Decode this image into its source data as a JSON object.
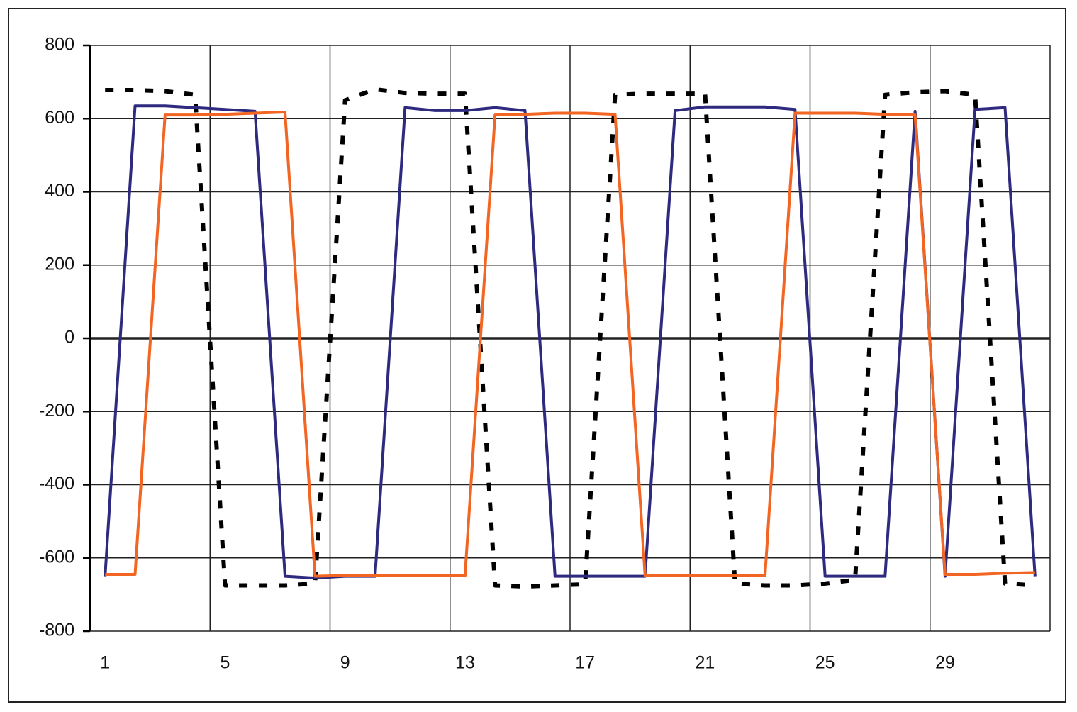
{
  "chart_data": {
    "type": "line",
    "categories": [
      "1",
      null,
      null,
      null,
      "5",
      null,
      null,
      null,
      "9",
      null,
      null,
      null,
      "13",
      null,
      null,
      null,
      "17",
      null,
      null,
      null,
      "21",
      null,
      null,
      null,
      "25",
      null,
      null,
      null,
      "29",
      null,
      null,
      null
    ],
    "series": [
      {
        "color": "#2e2a80",
        "line_style": "solid",
        "values": [
          -650,
          635,
          635,
          630,
          625,
          620,
          -650,
          -655,
          -650,
          -650,
          630,
          622,
          622,
          630,
          622,
          -650,
          -650,
          -650,
          -650,
          622,
          632,
          632,
          632,
          625,
          -650,
          -650,
          -650,
          620,
          -650,
          625,
          630,
          -650
        ]
      },
      {
        "color": "#f26522",
        "line_style": "solid",
        "values": [
          -645,
          -645,
          610,
          610,
          612,
          615,
          618,
          -650,
          -648,
          -648,
          -648,
          -648,
          -648,
          610,
          612,
          615,
          615,
          612,
          -648,
          -648,
          -648,
          -648,
          -648,
          615,
          615,
          615,
          612,
          610,
          -645,
          -645,
          -642,
          -640
        ]
      },
      {
        "color": "#000000",
        "line_style": "dotted",
        "values": [
          678,
          678,
          675,
          665,
          -675,
          -675,
          -675,
          -670,
          650,
          680,
          670,
          668,
          668,
          -675,
          -678,
          -675,
          -672,
          665,
          668,
          668,
          668,
          -670,
          -675,
          -675,
          -670,
          -660,
          665,
          672,
          675,
          665,
          -670,
          -675
        ]
      }
    ],
    "ylim": [
      -800,
      800
    ],
    "yticks": [
      -800,
      -600,
      -400,
      -200,
      0,
      200,
      400,
      600,
      800
    ],
    "grid": true
  }
}
